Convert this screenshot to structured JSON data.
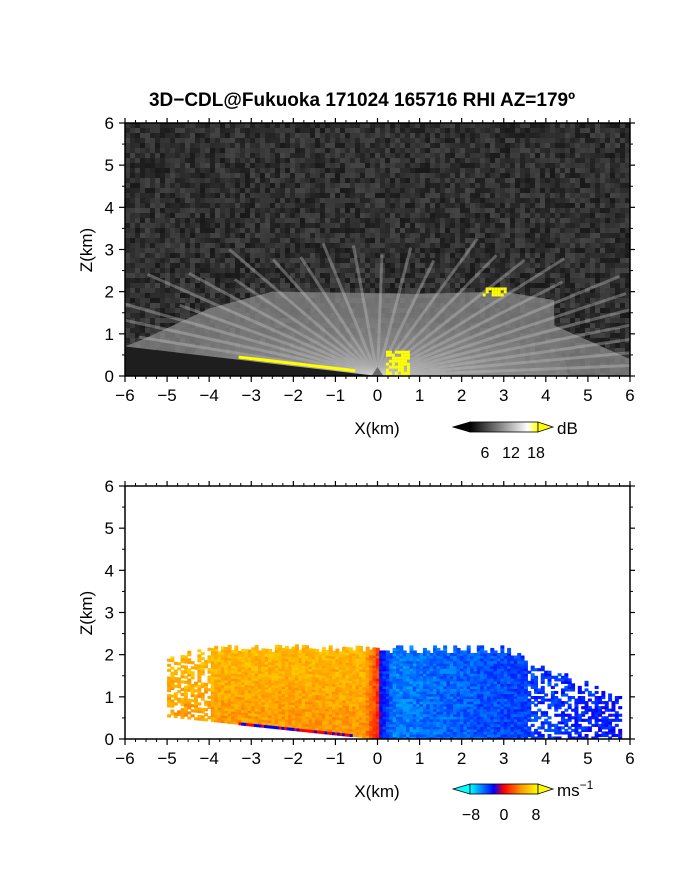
{
  "title": "3D−CDL@Fukuoka 171024 165716 RHI AZ=179º",
  "chart_data": [
    {
      "type": "heatmap",
      "quantity": "backscatter intensity",
      "xlabel": "X(km)",
      "ylabel": "Z(km)",
      "xlim": [
        -6,
        6
      ],
      "ylim": [
        0,
        6
      ],
      "xticks": [
        "−6",
        "−5",
        "−4",
        "−3",
        "−2",
        "−1",
        "0",
        "1",
        "2",
        "3",
        "4",
        "5",
        "6"
      ],
      "yticks": [
        "0",
        "1",
        "2",
        "3",
        "4",
        "5",
        "6"
      ],
      "colorbar": {
        "unit": "dB",
        "ticks": [
          "6",
          "12",
          "18"
        ],
        "range": [
          0,
          20
        ],
        "colors": [
          "#000000",
          "#ffffff",
          "#ffff00"
        ]
      },
      "features": {
        "layer_top_km": 2.0,
        "echo_x_range_km": [
          -5.5,
          4.2
        ],
        "background": "noise",
        "high_intensity_patches": [
          {
            "x": [
              2.5,
              3.0
            ],
            "z": [
              1.9,
              2.1
            ]
          },
          {
            "x": [
              0.2,
              0.7
            ],
            "z": [
              0.0,
              0.6
            ]
          }
        ]
      }
    },
    {
      "type": "heatmap",
      "quantity": "Doppler velocity",
      "xlabel": "X(km)",
      "ylabel": "Z(km)",
      "xlim": [
        -6,
        6
      ],
      "ylim": [
        0,
        6
      ],
      "xticks": [
        "−6",
        "−5",
        "−4",
        "−3",
        "−2",
        "−1",
        "0",
        "1",
        "2",
        "3",
        "4",
        "5",
        "6"
      ],
      "yticks": [
        "0",
        "1",
        "2",
        "3",
        "4",
        "5",
        "6"
      ],
      "colorbar": {
        "unit": "ms",
        "unit_exponent": "−1",
        "ticks": [
          "−8",
          "0",
          "8"
        ],
        "range": [
          -12,
          12
        ],
        "colors": [
          "#00ffff",
          "#0000ff",
          "#ff0000",
          "#ffff00"
        ]
      },
      "features": {
        "layer_top_km": 2.2,
        "echo_x_range_km": [
          -5.0,
          5.8
        ],
        "negative_side_velocity": 6,
        "positive_side_velocity": -8
      }
    }
  ]
}
